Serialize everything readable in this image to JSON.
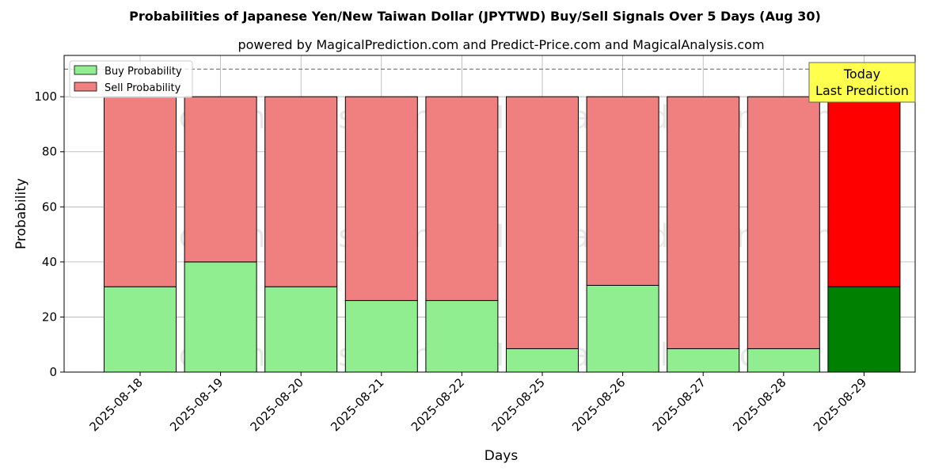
{
  "title": "Probabilities of Japanese Yen/New Taiwan Dollar (JPYTWD) Buy/Sell Signals Over 5 Days (Aug 30)",
  "subtitle": "powered by MagicalPrediction.com and Predict-Price.com and MagicalAnalysis.com",
  "watermarks": [
    "MagicalAnalysis.com",
    "MagicalPrediction.com"
  ],
  "colors": {
    "buy": "#90ee90",
    "sell": "#f08080",
    "buy_last": "#008000",
    "sell_last": "#ff0000",
    "annotation_bg": "#ffff4d"
  },
  "chart_data": {
    "type": "bar",
    "stacked": true,
    "categories": [
      "2025-08-18",
      "2025-08-19",
      "2025-08-20",
      "2025-08-21",
      "2025-08-22",
      "2025-08-25",
      "2025-08-26",
      "2025-08-27",
      "2025-08-28",
      "2025-08-29"
    ],
    "series": [
      {
        "name": "Buy Probability",
        "values": [
          31,
          40,
          31,
          26,
          26,
          8.5,
          31.5,
          8.5,
          8.5,
          31
        ]
      },
      {
        "name": "Sell Probability",
        "values": [
          69,
          60,
          69,
          74,
          74,
          91.5,
          68.5,
          91.5,
          91.5,
          69
        ]
      }
    ],
    "xlabel": "Days",
    "ylabel": "Probability",
    "ylim": [
      0,
      115
    ],
    "yticks": [
      0,
      20,
      40,
      60,
      80,
      100
    ],
    "reference_line": 110,
    "grid": true,
    "legend_position": "top-left",
    "annotation": {
      "lines": [
        "Today",
        "Last Prediction"
      ],
      "category": "2025-08-29"
    }
  }
}
